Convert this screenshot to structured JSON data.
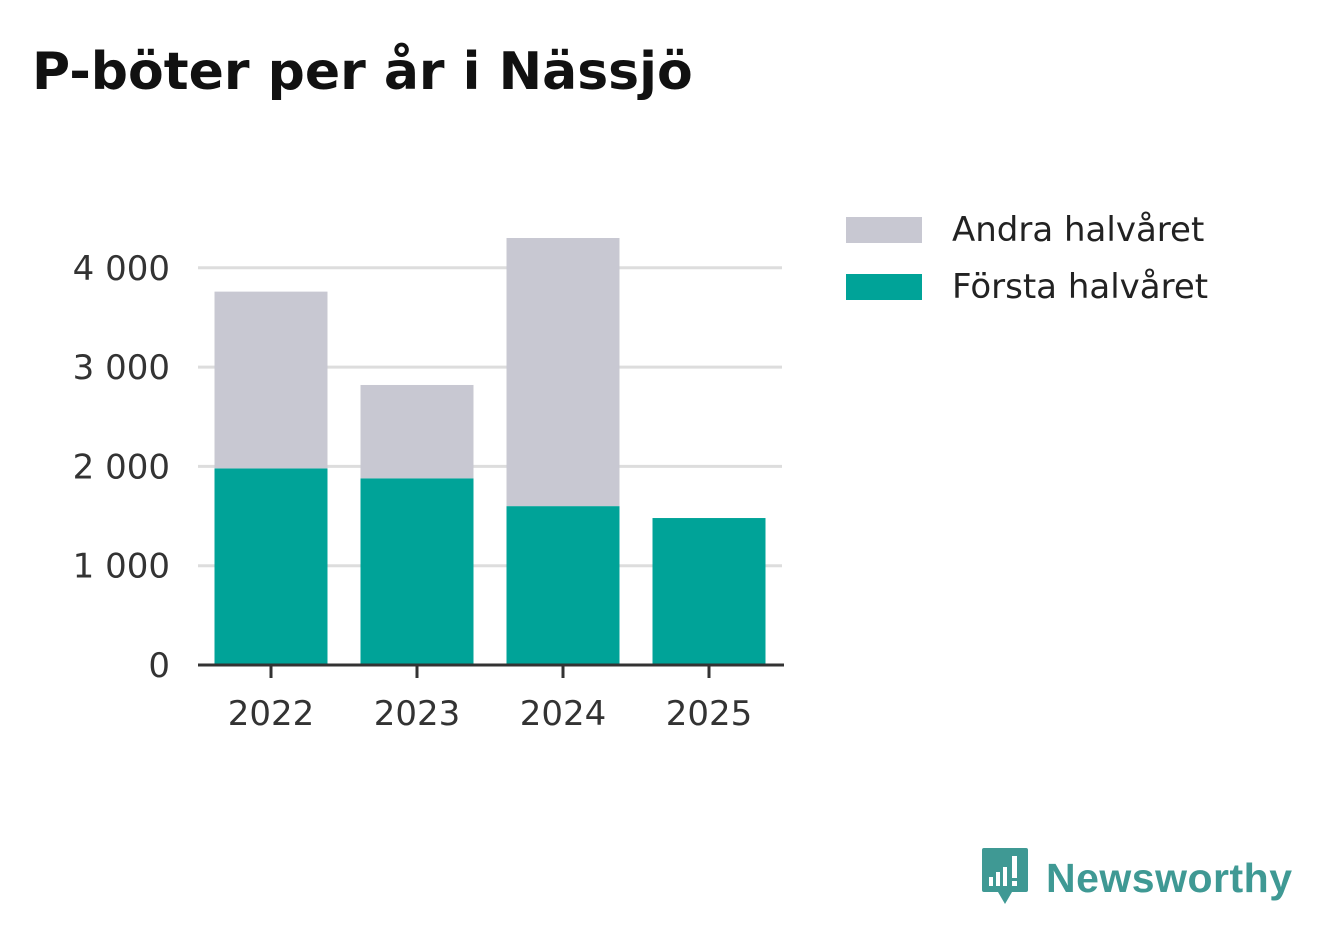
{
  "title": "P-böter per år i Nässjö",
  "legend": {
    "items": [
      {
        "label": "Andra halvåret",
        "color": "#c8c8d2"
      },
      {
        "label": "Första halvåret",
        "color": "#00a398"
      }
    ]
  },
  "brand": {
    "name": "Newsworthy",
    "icon": "newsworthy-logo-icon",
    "color": "#3f9994"
  },
  "chart_data": {
    "type": "bar",
    "stacked": true,
    "categories": [
      "2022",
      "2023",
      "2024",
      "2025"
    ],
    "series": [
      {
        "name": "Första halvåret",
        "color": "#00a398",
        "values": [
          1980,
          1880,
          1600,
          1480
        ]
      },
      {
        "name": "Andra halvåret",
        "color": "#c8c8d2",
        "values": [
          1780,
          940,
          2700,
          null
        ]
      }
    ],
    "yticks": [
      0,
      1000,
      2000,
      3000,
      4000
    ],
    "ytick_labels": [
      "0",
      "1 000",
      "2 000",
      "3 000",
      "4 000"
    ],
    "ylim": [
      0,
      4300
    ],
    "grid": true,
    "legend_position": "right"
  }
}
